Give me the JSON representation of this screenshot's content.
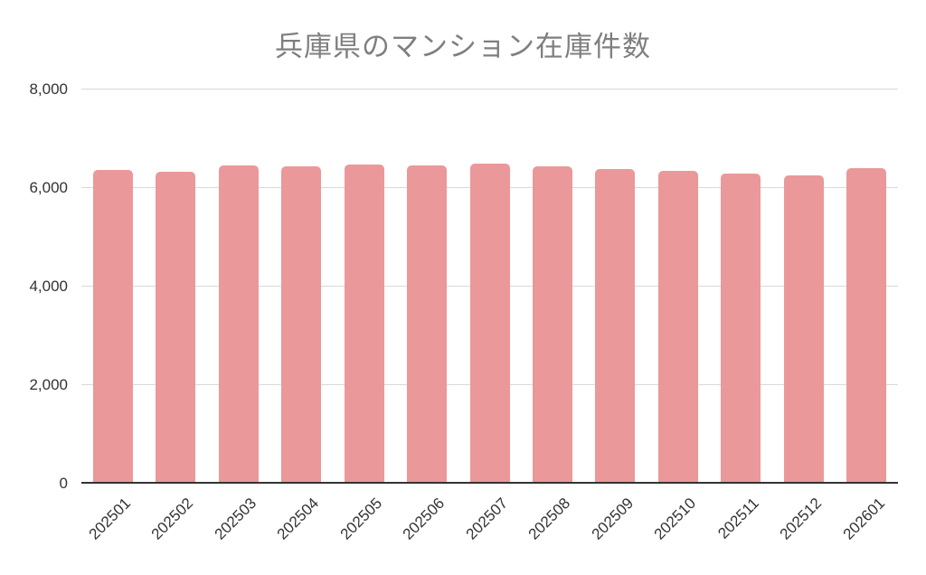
{
  "chart_data": {
    "type": "bar",
    "title": "兵庫県のマンション在庫件数",
    "categories": [
      "202501",
      "202502",
      "202503",
      "202504",
      "202505",
      "202506",
      "202507",
      "202508",
      "202509",
      "202510",
      "202511",
      "202512",
      "202601"
    ],
    "values": [
      6370,
      6330,
      6450,
      6440,
      6470,
      6460,
      6490,
      6440,
      6390,
      6340,
      6300,
      6260,
      6400
    ],
    "xlabel": "",
    "ylabel": "",
    "ylim": [
      0,
      8000
    ],
    "yticks": [
      0,
      2000,
      4000,
      6000,
      8000
    ],
    "ytick_labels": [
      "0",
      "2,000",
      "4,000",
      "6,000",
      "8,000"
    ],
    "grid": true,
    "legend": false,
    "bar_corner_radius_px": 5
  },
  "colors": {
    "bar": "#ea989a",
    "title_text": "#7f7f7f",
    "axis_text": "#333333",
    "axis_line": "#333333",
    "gridline": "#d9d9d9",
    "background": "#ffffff"
  }
}
